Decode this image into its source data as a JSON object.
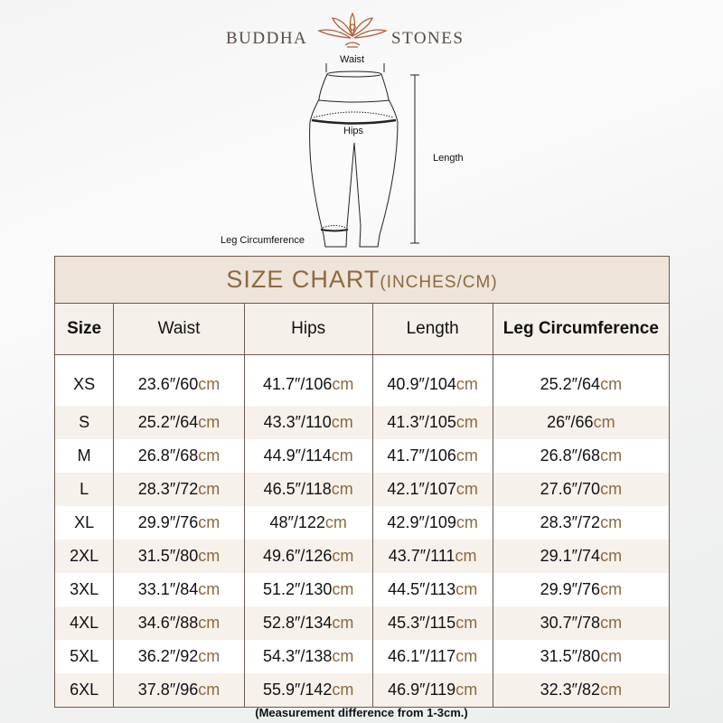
{
  "brand": {
    "left": "BUDDHA",
    "right": "STONES"
  },
  "diagram": {
    "waist": "Waist",
    "hips": "Hips",
    "length": "Length",
    "leg": "Leg Circumference"
  },
  "colors": {
    "accent": "#8b6a3e",
    "title_bg": "#efe4da",
    "alt_row": "#f7f1ec"
  },
  "table": {
    "title": "SIZE CHART",
    "title_units": "(INCHES/CM)",
    "headers": [
      "Size",
      "Waist",
      "Hips",
      "Length",
      "Leg Circumference"
    ],
    "unit": "cm",
    "rows": [
      [
        "XS",
        "23.6″/60",
        "41.7″/106",
        "40.9″/104",
        "25.2″/64"
      ],
      [
        "S",
        "25.2″/64",
        "43.3″/110",
        "41.3″/105",
        "26″/66"
      ],
      [
        "M",
        "26.8″/68",
        "44.9″/114",
        "41.7″/106",
        "26.8″/68"
      ],
      [
        "L",
        "28.3″/72",
        "46.5″/118",
        "42.1″/107",
        "27.6″/70"
      ],
      [
        "XL",
        "29.9″/76",
        "48″/122",
        "42.9″/109",
        "28.3″/72"
      ],
      [
        "2XL",
        "31.5″/80",
        "49.6″/126",
        "43.7″/111",
        "29.1″/74"
      ],
      [
        "3XL",
        "33.1″/84",
        "51.2″/130",
        "44.5″/113",
        "29.9″/76"
      ],
      [
        "4XL",
        "34.6″/88",
        "52.8″/134",
        "45.3″/115",
        "30.7″/78"
      ],
      [
        "5XL",
        "36.2″/92",
        "54.3″/138",
        "46.1″/117",
        "31.5″/80"
      ],
      [
        "6XL",
        "37.8″/96",
        "55.9″/142",
        "46.9″/119",
        "32.3″/82"
      ]
    ]
  },
  "note": "(Measurement difference from 1-3cm.)"
}
